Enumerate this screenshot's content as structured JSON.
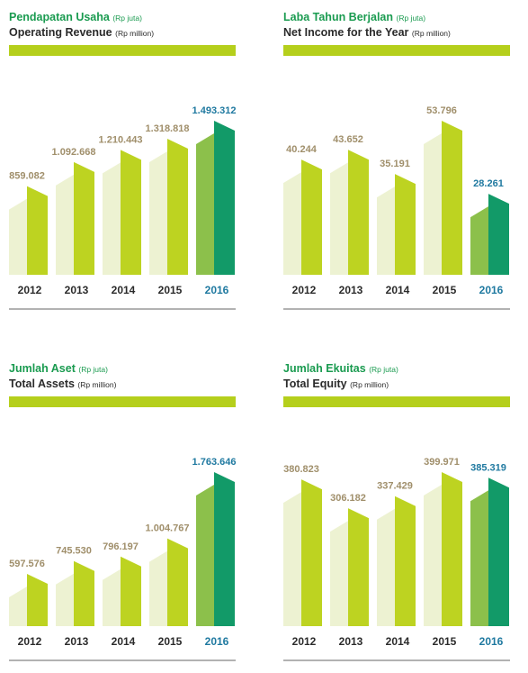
{
  "colors": {
    "accent_bar": "#b5cf1c",
    "bar_light": "#edf2d2",
    "bar_main": "#bdd321",
    "bar_highlight_light": "#8cc04b",
    "bar_highlight_main": "#129a68",
    "value_label": "#a08f6b",
    "value_label_highlight": "#1f79a0",
    "year_label": "#2b2b2b",
    "year_label_highlight": "#1f79a0",
    "baseline": "#333333"
  },
  "chart_data": [
    {
      "type": "bar",
      "title_id": "Pendapatan Usaha",
      "title_id_unit": "(Rp juta)",
      "title_en": "Operating Revenue",
      "title_en_unit": "(Rp million)",
      "categories": [
        "2012",
        "2013",
        "2014",
        "2015",
        "2016"
      ],
      "values": [
        859082,
        1092668,
        1210443,
        1318818,
        1493312
      ],
      "value_labels": [
        "859.082",
        "1.092.668",
        "1.210.443",
        "1.318.818",
        "1.493.312"
      ],
      "highlight": "2016"
    },
    {
      "type": "bar",
      "title_id": "Laba Tahun Berjalan",
      "title_id_unit": "(Rp juta)",
      "title_en": "Net Income for the Year",
      "title_en_unit": "(Rp million)",
      "categories": [
        "2012",
        "2013",
        "2014",
        "2015",
        "2016"
      ],
      "values": [
        40244,
        43652,
        35191,
        53796,
        28261
      ],
      "value_labels": [
        "40.244",
        "43.652",
        "35.191",
        "53.796",
        "28.261"
      ],
      "highlight": "2016"
    },
    {
      "type": "bar",
      "title_id": "Jumlah Aset",
      "title_id_unit": "(Rp juta)",
      "title_en": "Total Assets",
      "title_en_unit": "(Rp million)",
      "categories": [
        "2012",
        "2013",
        "2014",
        "2015",
        "2016"
      ],
      "values": [
        597576,
        745530,
        796197,
        1004767,
        1763646
      ],
      "value_labels": [
        "597.576",
        "745.530",
        "796.197",
        "1.004.767",
        "1.763.646"
      ],
      "highlight": "2016"
    },
    {
      "type": "bar",
      "title_id": "Jumlah Ekuitas",
      "title_id_unit": "(Rp juta)",
      "title_en": "Total Equity",
      "title_en_unit": "(Rp million)",
      "categories": [
        "2012",
        "2013",
        "2014",
        "2015",
        "2016"
      ],
      "values": [
        380823,
        306182,
        337429,
        399971,
        385319
      ],
      "value_labels": [
        "380.823",
        "306.182",
        "337.429",
        "399.971",
        "385.319"
      ],
      "highlight": "2016"
    }
  ]
}
